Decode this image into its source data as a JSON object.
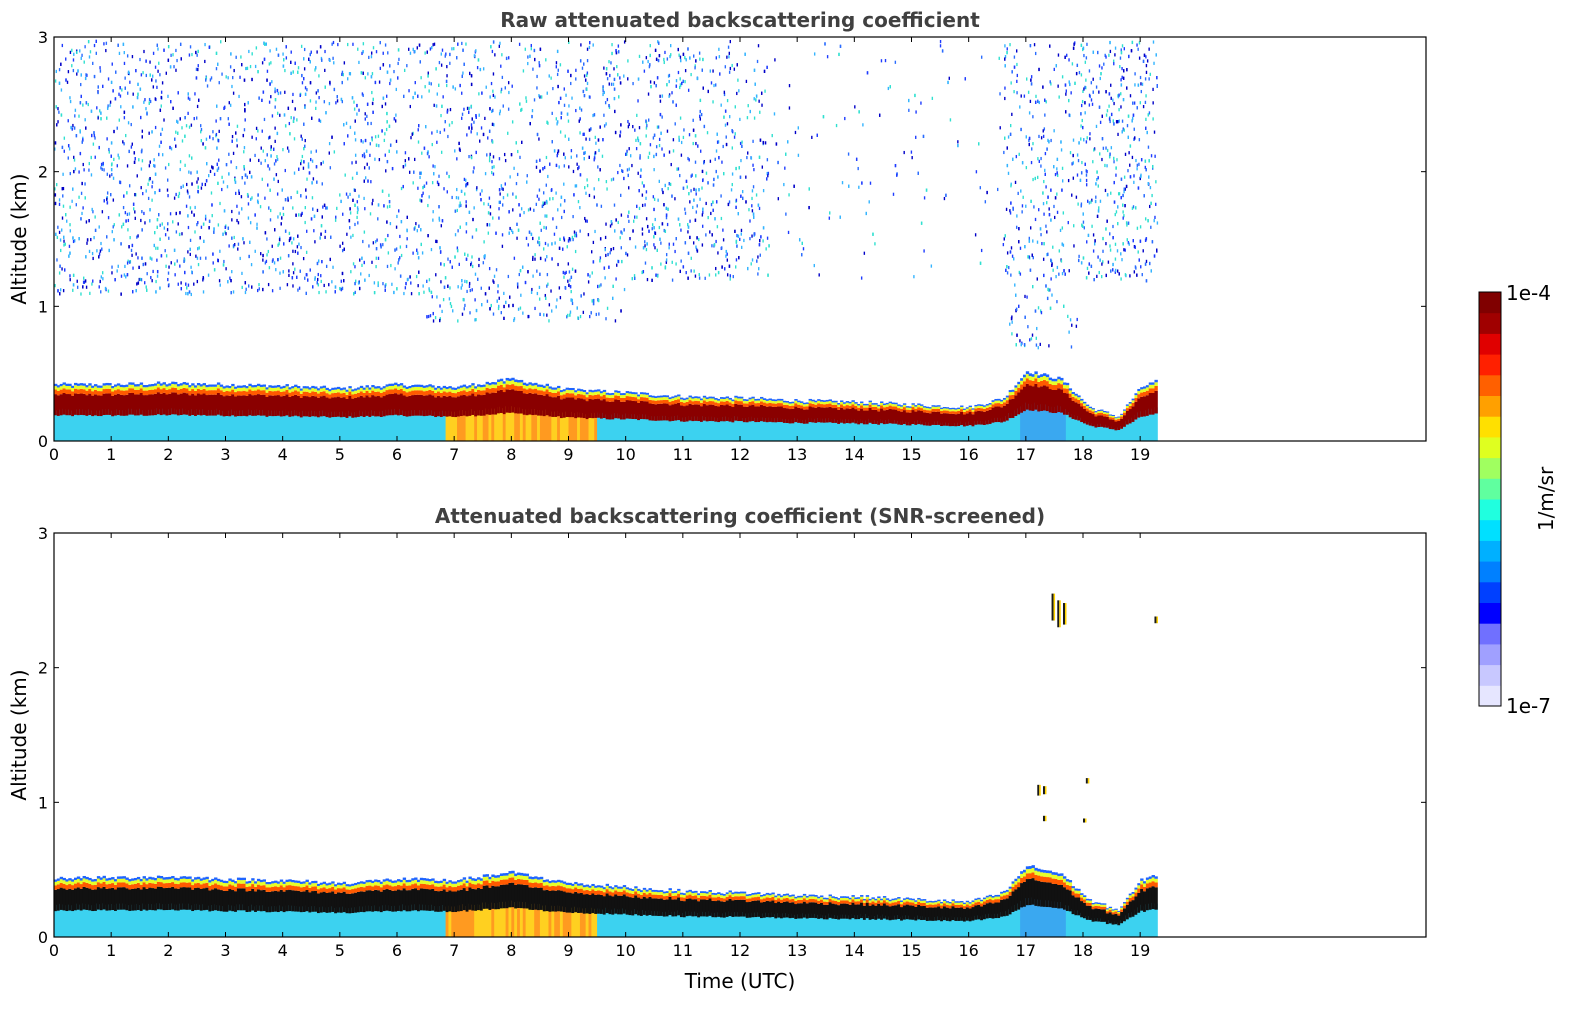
{
  "chart_data": [
    {
      "type": "heatmap",
      "title": "Raw attenuated backscattering coefficient",
      "xlabel": "",
      "ylabel": "Altitude (km)",
      "xlim": [
        0,
        24
      ],
      "ylim": [
        0,
        3
      ],
      "x_ticks": [
        "0",
        "1",
        "2",
        "3",
        "4",
        "5",
        "6",
        "7",
        "8",
        "9",
        "10",
        "11",
        "12",
        "13",
        "14",
        "15",
        "16",
        "17",
        "18",
        "19"
      ],
      "y_ticks": [
        "0",
        "1",
        "2",
        "3"
      ],
      "data_end_hour": 19.3,
      "screened": false,
      "layer_top_km": [
        [
          0,
          0.42
        ],
        [
          1,
          0.42
        ],
        [
          2,
          0.43
        ],
        [
          3,
          0.42
        ],
        [
          4,
          0.41
        ],
        [
          5,
          0.39
        ],
        [
          6,
          0.42
        ],
        [
          7,
          0.4
        ],
        [
          8,
          0.46
        ],
        [
          9,
          0.38
        ],
        [
          10,
          0.36
        ],
        [
          11,
          0.33
        ],
        [
          12,
          0.32
        ],
        [
          13,
          0.3
        ],
        [
          14,
          0.29
        ],
        [
          15,
          0.27
        ],
        [
          16,
          0.25
        ],
        [
          16.6,
          0.32
        ],
        [
          17,
          0.52
        ],
        [
          17.6,
          0.46
        ],
        [
          18.1,
          0.25
        ],
        [
          18.6,
          0.18
        ],
        [
          19,
          0.4
        ],
        [
          19.3,
          0.45
        ]
      ]
    },
    {
      "type": "heatmap",
      "title": "Attenuated backscattering coefficient (SNR-screened)",
      "xlabel": "Time (UTC)",
      "ylabel": "Altitude (km)",
      "xlim": [
        0,
        24
      ],
      "ylim": [
        0,
        3
      ],
      "x_ticks": [
        "0",
        "1",
        "2",
        "3",
        "4",
        "5",
        "6",
        "7",
        "8",
        "9",
        "10",
        "11",
        "12",
        "13",
        "14",
        "15",
        "16",
        "17",
        "18",
        "19"
      ],
      "y_ticks": [
        "0",
        "1",
        "2",
        "3"
      ],
      "data_end_hour": 19.3,
      "screened": true,
      "layer_top_km": [
        [
          0,
          0.44
        ],
        [
          1,
          0.44
        ],
        [
          2,
          0.45
        ],
        [
          3,
          0.43
        ],
        [
          4,
          0.42
        ],
        [
          5,
          0.4
        ],
        [
          6,
          0.43
        ],
        [
          7,
          0.42
        ],
        [
          8,
          0.48
        ],
        [
          9,
          0.4
        ],
        [
          10,
          0.37
        ],
        [
          11,
          0.34
        ],
        [
          12,
          0.33
        ],
        [
          13,
          0.31
        ],
        [
          14,
          0.3
        ],
        [
          15,
          0.28
        ],
        [
          16,
          0.26
        ],
        [
          16.6,
          0.33
        ],
        [
          17,
          0.53
        ],
        [
          17.6,
          0.47
        ],
        [
          18.1,
          0.27
        ],
        [
          18.6,
          0.2
        ],
        [
          19,
          0.42
        ],
        [
          19.3,
          0.47
        ]
      ]
    }
  ],
  "colorbar": {
    "label": "1/m/sr",
    "max_label": "1e-4",
    "min_label": "1e-7",
    "colors": [
      "#e6e6ff",
      "#c8c8ff",
      "#a0a0ff",
      "#7070ff",
      "#0000ff",
      "#0040ff",
      "#0080ff",
      "#00b0ff",
      "#00e0ff",
      "#20ffdf",
      "#60ff9f",
      "#a0ff60",
      "#dfff20",
      "#ffe000",
      "#ffa000",
      "#ff6000",
      "#ff2000",
      "#e00000",
      "#a00000",
      "#800000"
    ]
  }
}
